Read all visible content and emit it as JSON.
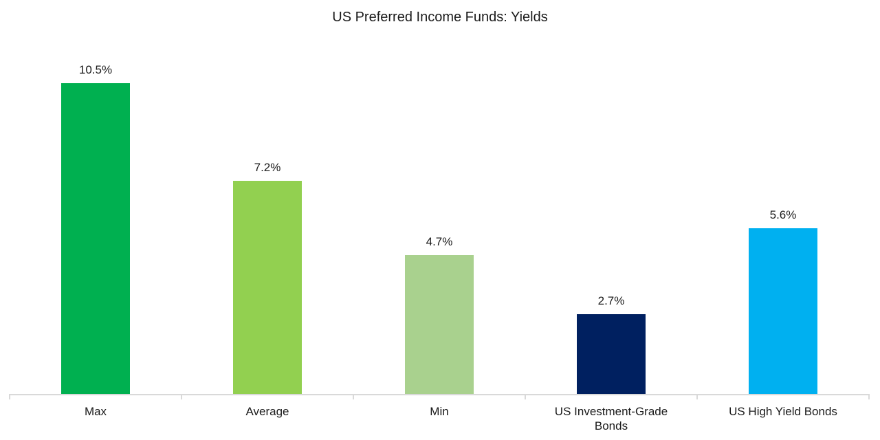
{
  "chart_data": {
    "type": "bar",
    "title": "US Preferred Income Funds: Yields",
    "xlabel": "",
    "ylabel": "",
    "categories": [
      "Max",
      "Average",
      "Min",
      "US Investment-Grade Bonds",
      "US High Yield Bonds"
    ],
    "values": [
      10.5,
      7.2,
      4.7,
      2.7,
      5.6
    ],
    "value_labels": [
      "10.5%",
      "7.2%",
      "4.7%",
      "2.7%",
      "5.6%"
    ],
    "colors": [
      "#00b050",
      "#92d050",
      "#a9d18e",
      "#002060",
      "#00b0f0"
    ],
    "ylim": [
      0,
      10.5
    ],
    "grid": false,
    "legend": null,
    "y_axis_visible": false,
    "unit": "%"
  }
}
